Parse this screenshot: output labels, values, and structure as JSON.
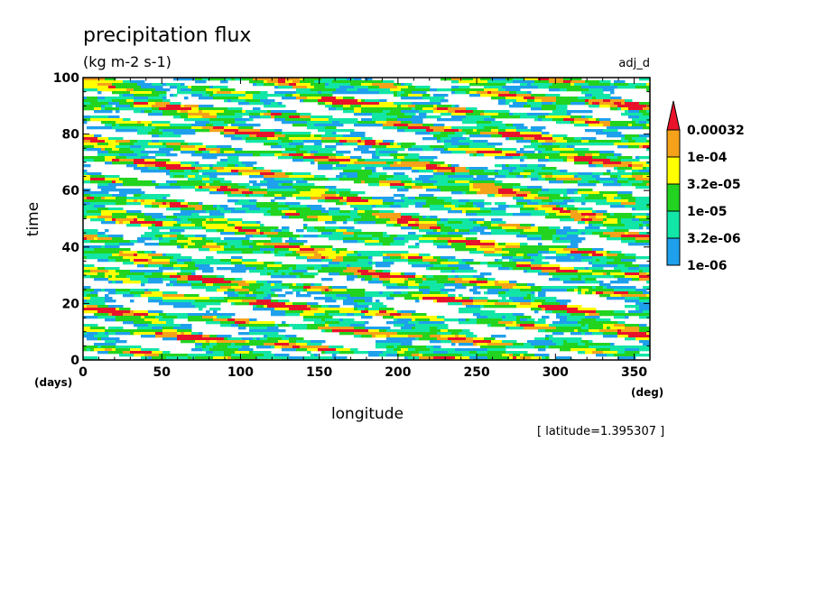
{
  "chart_data": {
    "type": "heatmap",
    "title": "precipitation flux",
    "units": "(kg m-2 s-1)",
    "run_label": "adj_d",
    "xlabel": "longitude",
    "xunit": "(deg)",
    "ylabel": "time",
    "yunit": "(days)",
    "xlim": [
      0,
      360
    ],
    "ylim": [
      0,
      100
    ],
    "x_ticks": [
      "0",
      "50",
      "100",
      "150",
      "200",
      "250",
      "300",
      "350"
    ],
    "y_ticks": [
      "0",
      "20",
      "40",
      "60",
      "80",
      "100"
    ],
    "x_tick_values": [
      0,
      50,
      100,
      150,
      200,
      250,
      300,
      350
    ],
    "y_tick_values": [
      0,
      20,
      40,
      60,
      80,
      100
    ],
    "colorbar": {
      "labels": [
        "0.00032",
        "1e-04",
        "3.2e-05",
        "1e-05",
        "3.2e-06",
        "1e-06"
      ],
      "level_values": [
        0.00032,
        0.0001,
        3.2e-05,
        1e-05,
        3.2e-06,
        1e-06
      ],
      "colors": [
        "#e8132b",
        "#f5a21a",
        "#ffff00",
        "#22d41f",
        "#12e6a6",
        "#1ea0ec"
      ]
    },
    "annotation": "[ latitude=1.395307 ]"
  }
}
